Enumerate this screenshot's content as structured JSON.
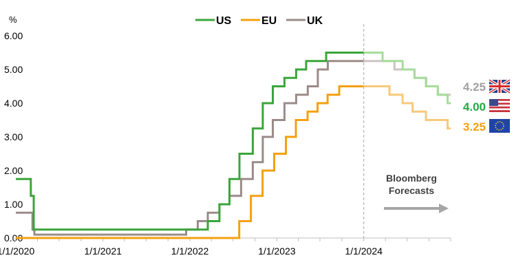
{
  "chart_data": {
    "type": "line",
    "y_unit": "%",
    "ylim": [
      0,
      6
    ],
    "y_ticks": [
      "0.00",
      "1.00",
      "2.00",
      "3.00",
      "4.00",
      "5.00",
      "6.00"
    ],
    "x_range": [
      "2020-01-01",
      "2024-12-31"
    ],
    "x_ticks": [
      {
        "date": "2020-01-01",
        "label": "1/1/2020"
      },
      {
        "date": "2021-01-01",
        "label": "1/1/2021"
      },
      {
        "date": "2022-01-01",
        "label": "1/1/2022"
      },
      {
        "date": "2023-01-01",
        "label": "1/1/2023"
      },
      {
        "date": "2024-01-01",
        "label": "1/1/2024"
      }
    ],
    "forecast_start": "2024-01-01",
    "grid": false,
    "legend_position": "top",
    "series": [
      {
        "name": "US",
        "color": "#3aa53a",
        "forecast_color": "#a6dc9a",
        "end_label": "4.00",
        "end_label_color": "#22a845",
        "flag": "us-flag-icon",
        "points": [
          [
            "2020-01-01",
            1.75
          ],
          [
            "2020-03-04",
            1.25
          ],
          [
            "2020-03-16",
            0.25
          ],
          [
            "2022-03-17",
            0.5
          ],
          [
            "2022-05-05",
            1.0
          ],
          [
            "2022-06-16",
            1.75
          ],
          [
            "2022-07-28",
            2.5
          ],
          [
            "2022-09-22",
            3.25
          ],
          [
            "2022-11-03",
            4.0
          ],
          [
            "2022-12-15",
            4.5
          ],
          [
            "2023-02-02",
            4.75
          ],
          [
            "2023-03-23",
            5.0
          ],
          [
            "2023-05-04",
            5.25
          ],
          [
            "2023-07-27",
            5.5
          ]
        ],
        "forecast": [
          [
            "2024-01-01",
            5.5
          ],
          [
            "2024-03-20",
            5.25
          ],
          [
            "2024-06-12",
            5.0
          ],
          [
            "2024-08-01",
            4.75
          ],
          [
            "2024-09-18",
            4.5
          ],
          [
            "2024-11-07",
            4.25
          ],
          [
            "2024-12-18",
            4.0
          ],
          [
            "2024-12-31",
            4.0
          ]
        ]
      },
      {
        "name": "EU",
        "color": "#f5a00f",
        "forecast_color": "#f7c97a",
        "end_label": "3.25",
        "end_label_color": "#f5a00f",
        "flag": "eu-flag-icon",
        "points": [
          [
            "2020-01-01",
            0.0
          ],
          [
            "2022-07-27",
            0.5
          ],
          [
            "2022-09-14",
            1.25
          ],
          [
            "2022-11-02",
            2.0
          ],
          [
            "2022-12-21",
            2.5
          ],
          [
            "2023-02-08",
            3.0
          ],
          [
            "2023-03-22",
            3.5
          ],
          [
            "2023-05-10",
            3.75
          ],
          [
            "2023-06-21",
            4.0
          ],
          [
            "2023-08-02",
            4.25
          ],
          [
            "2023-09-20",
            4.5
          ]
        ],
        "forecast": [
          [
            "2024-01-01",
            4.5
          ],
          [
            "2024-04-18",
            4.25
          ],
          [
            "2024-06-12",
            4.0
          ],
          [
            "2024-07-24",
            3.75
          ],
          [
            "2024-09-18",
            3.5
          ],
          [
            "2024-10-23",
            3.5
          ],
          [
            "2024-12-18",
            3.25
          ],
          [
            "2024-12-31",
            3.25
          ]
        ]
      },
      {
        "name": "UK",
        "color": "#9b8b88",
        "forecast_color": "#cdc5c3",
        "end_label": "4.25",
        "end_label_color": "#a0a0a0",
        "flag": "uk-flag-icon",
        "points": [
          [
            "2020-01-01",
            0.75
          ],
          [
            "2020-03-11",
            0.25
          ],
          [
            "2020-03-19",
            0.1
          ],
          [
            "2021-12-16",
            0.25
          ],
          [
            "2022-02-03",
            0.5
          ],
          [
            "2022-03-17",
            0.75
          ],
          [
            "2022-05-05",
            1.0
          ],
          [
            "2022-06-16",
            1.25
          ],
          [
            "2022-08-04",
            1.75
          ],
          [
            "2022-09-22",
            2.25
          ],
          [
            "2022-11-03",
            3.0
          ],
          [
            "2022-12-15",
            3.5
          ],
          [
            "2023-02-02",
            4.0
          ],
          [
            "2023-03-23",
            4.25
          ],
          [
            "2023-05-11",
            4.5
          ],
          [
            "2023-06-22",
            5.0
          ],
          [
            "2023-08-03",
            5.25
          ]
        ],
        "forecast": [
          [
            "2024-01-01",
            5.25
          ],
          [
            "2024-05-09",
            5.0
          ],
          [
            "2024-06-20",
            5.0
          ],
          [
            "2024-08-01",
            4.75
          ],
          [
            "2024-09-19",
            4.5
          ],
          [
            "2024-11-07",
            4.25
          ],
          [
            "2024-12-31",
            4.25
          ]
        ]
      }
    ],
    "annotation": {
      "lines": [
        "Bloomberg",
        "Forecasts"
      ],
      "arrow": "right-arrow-icon"
    }
  }
}
